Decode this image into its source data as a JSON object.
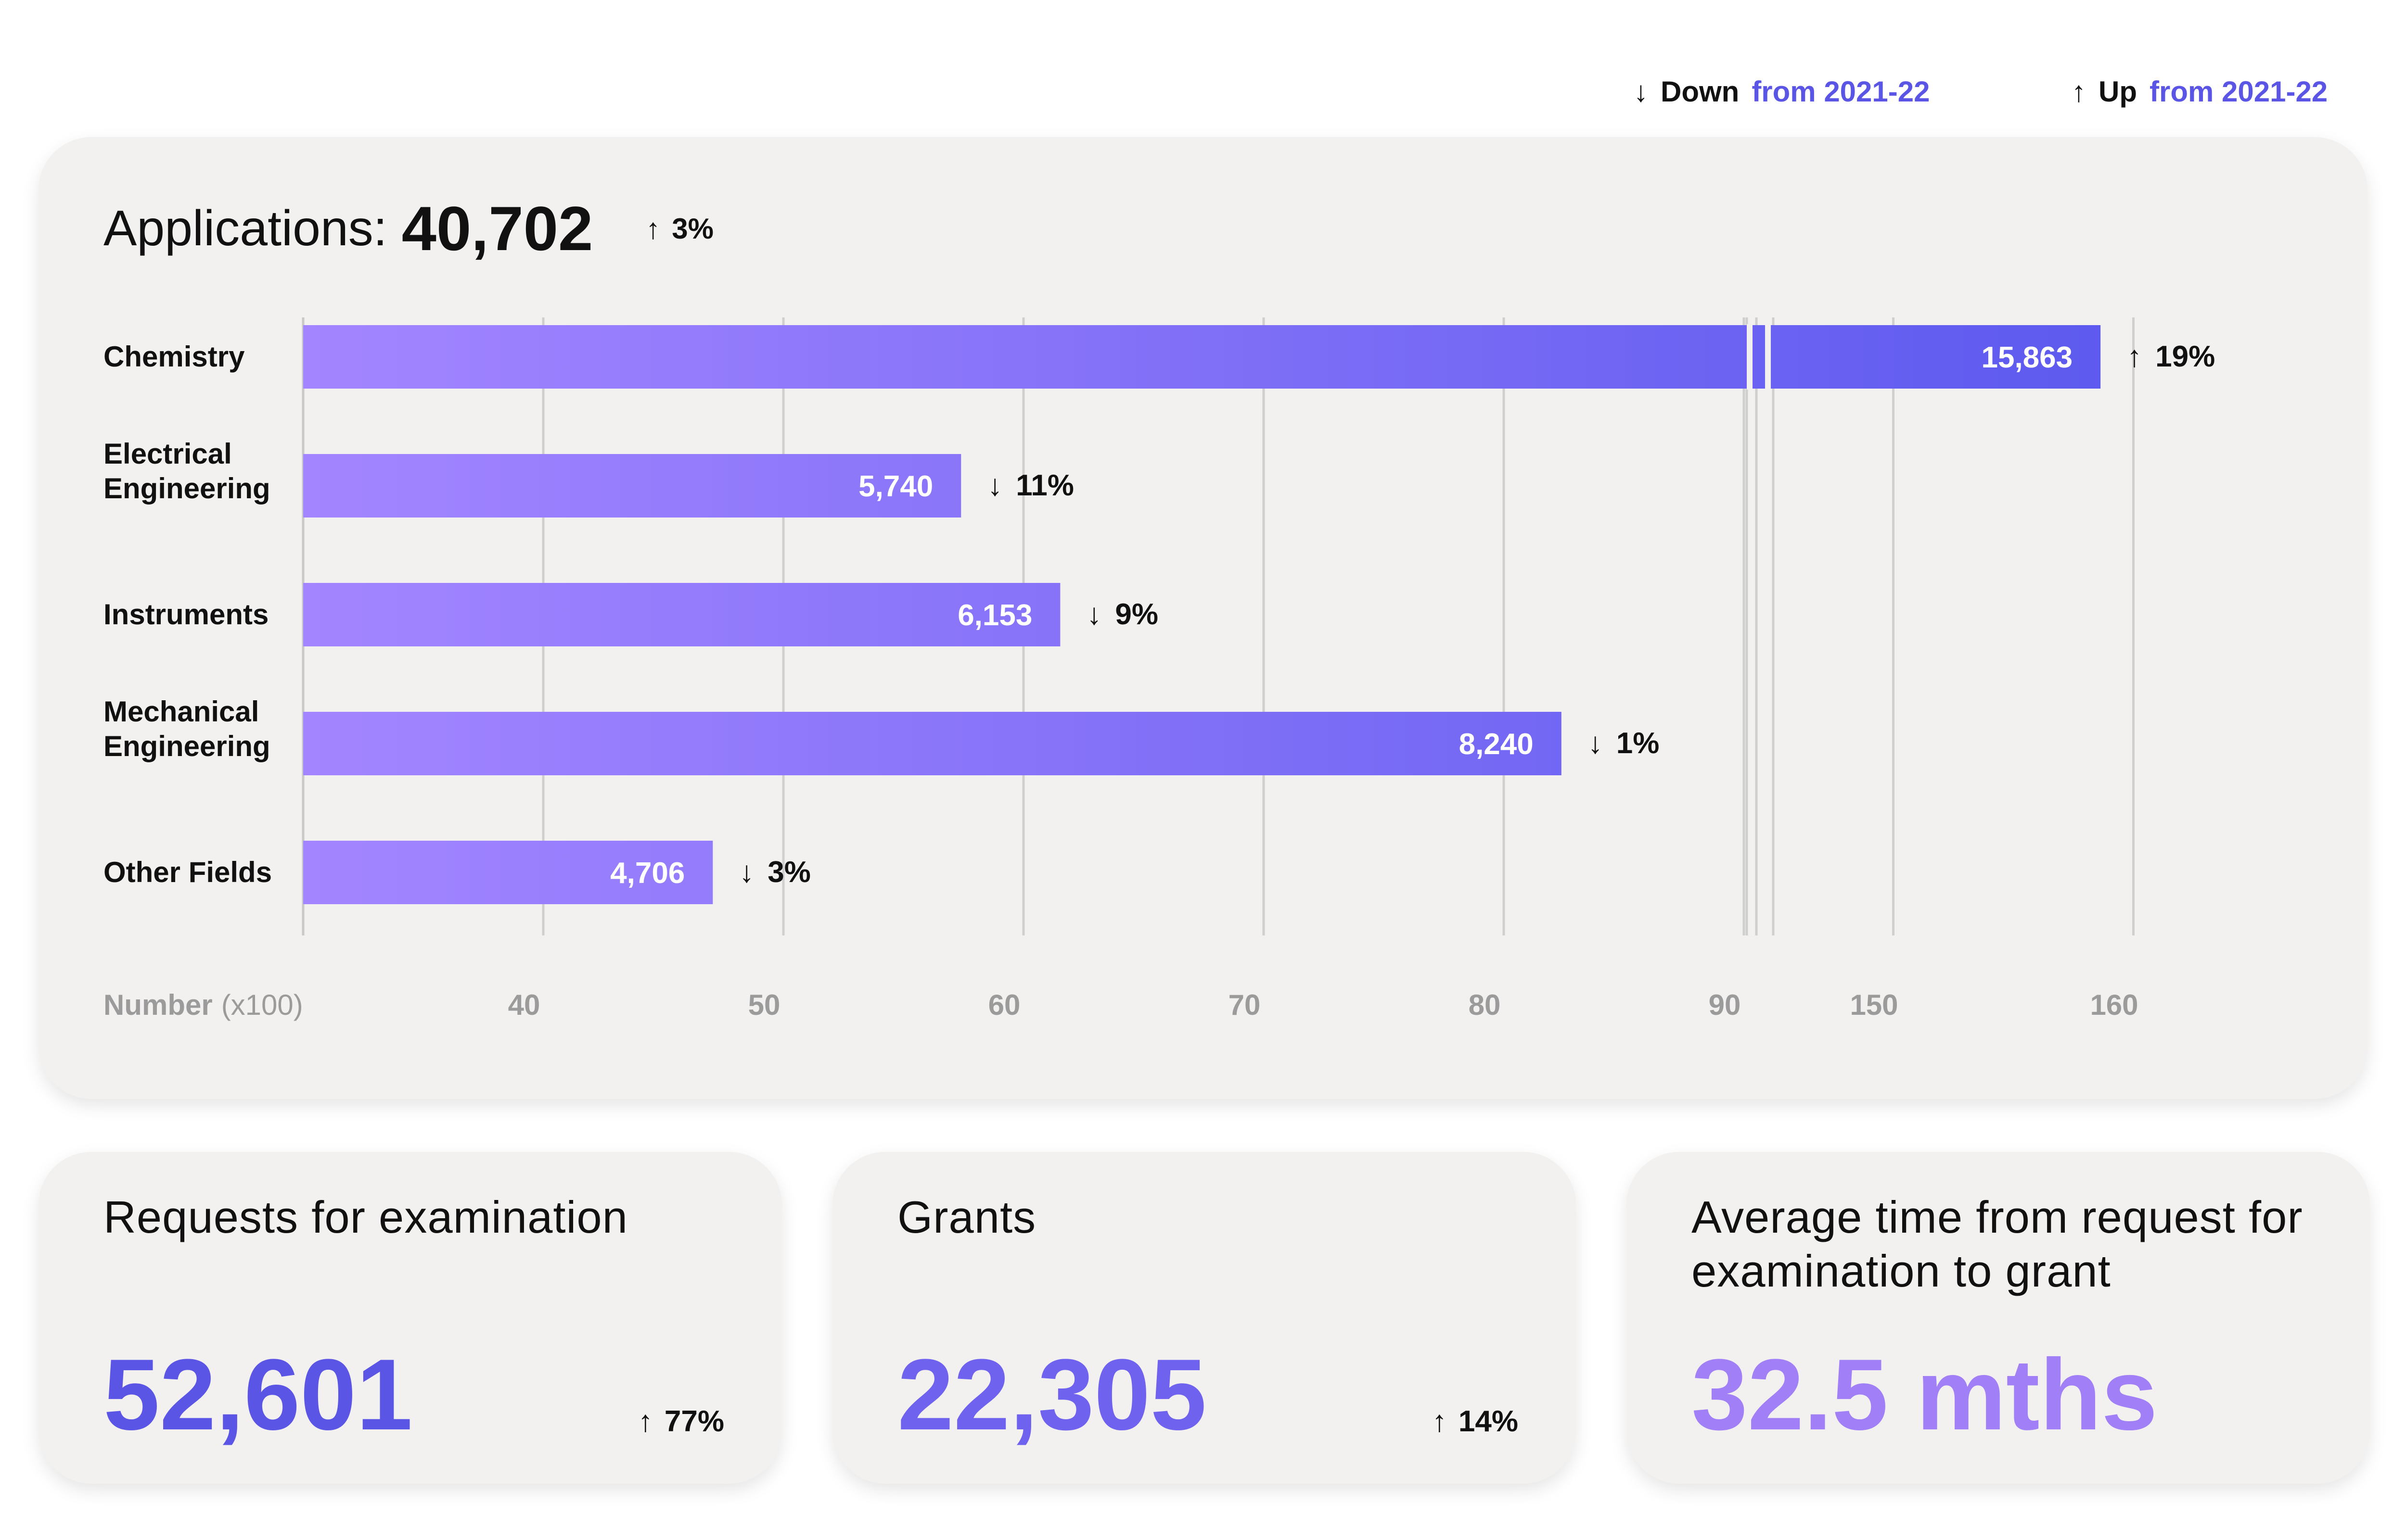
{
  "legend": {
    "down": {
      "icon": "arrow-down-icon",
      "glyph": "↓",
      "word": "Down",
      "suffix": "from 2021-22"
    },
    "up": {
      "icon": "arrow-up-icon",
      "glyph": "↑",
      "word": "Up",
      "suffix": "from 2021-22"
    }
  },
  "applications": {
    "label": "Applications:",
    "total": "40,702",
    "change": {
      "direction": "up",
      "glyph": "↑",
      "text": "3%"
    }
  },
  "chart_data": {
    "type": "bar",
    "orientation": "horizontal",
    "categories": [
      [
        "Chemistry"
      ],
      [
        "Electrical",
        "Engineering"
      ],
      [
        "Instruments"
      ],
      [
        "Mechanical",
        "Engineering"
      ],
      [
        "Other Fields"
      ]
    ],
    "values": [
      15863,
      5740,
      6153,
      8240,
      4706
    ],
    "value_labels": [
      "15,863",
      "5,740",
      "6,153",
      "8,240",
      "4,706"
    ],
    "changes": [
      {
        "direction": "up",
        "glyph": "↑",
        "text": "19%"
      },
      {
        "direction": "down",
        "glyph": "↓",
        "text": "11%"
      },
      {
        "direction": "down",
        "glyph": "↓",
        "text": "9%"
      },
      {
        "direction": "down",
        "glyph": "↓",
        "text": "1%"
      },
      {
        "direction": "down",
        "glyph": "↓",
        "text": "3%"
      }
    ],
    "xlabel": "Number",
    "xlabel_unit": "(x100)",
    "x_scale": "broken axis between 90 and 150",
    "xticks": [
      40,
      50,
      60,
      70,
      80,
      90,
      150,
      160
    ],
    "xlim": [
      30,
      160
    ],
    "grid": true,
    "colors": {
      "bar_start": "#a385ff",
      "bar_end": "#5a58ee"
    }
  },
  "stats": [
    {
      "title": "Requests for examination",
      "value": "52,601",
      "change": {
        "direction": "up",
        "glyph": "↑",
        "text": "77%"
      },
      "color": "#5b55e6"
    },
    {
      "title": "Grants",
      "value": "22,305",
      "change": {
        "direction": "up",
        "glyph": "↑",
        "text": "14%"
      },
      "color": "#6f62ee"
    },
    {
      "title": "Average time from request for examination to grant",
      "value": "32.5 mths",
      "change": null,
      "color": "#a07ff7"
    }
  ]
}
